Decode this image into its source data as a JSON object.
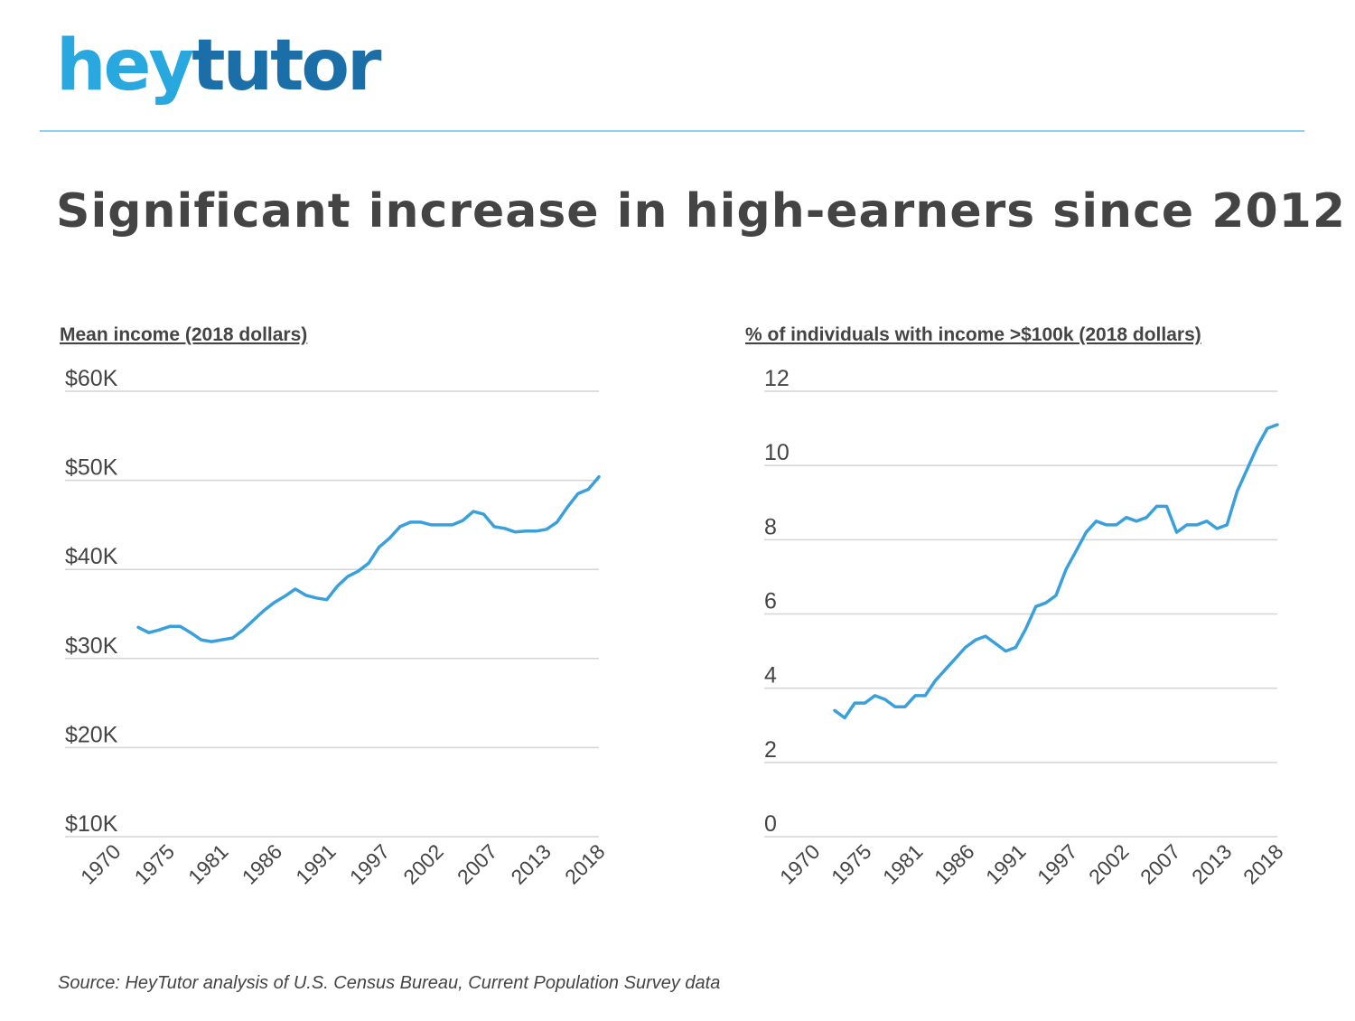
{
  "logo": {
    "hey": "hey",
    "tutor": "tutor"
  },
  "title": "Significant increase in high-earners since 2012",
  "source": "Source: HeyTutor analysis of U.S. Census Bureau, Current Population Survey data",
  "colors": {
    "line": "#3aa0dc",
    "grid": "#d4d4d4",
    "text": "#444444",
    "logo_light": "#29a8e0",
    "logo_dark": "#1b6fa8"
  },
  "chart_data": [
    {
      "type": "line",
      "title": "Mean income (2018 dollars)",
      "x_ticks": [
        "1970",
        "1975",
        "1981",
        "1986",
        "1991",
        "1997",
        "2002",
        "2007",
        "2013",
        "2018"
      ],
      "y_ticks": [
        "$10K",
        "$20K",
        "$30K",
        "$40K",
        "$50K",
        "$60K"
      ],
      "ylim": [
        10000,
        60000
      ],
      "xlim": [
        1967,
        2018
      ],
      "grid": true,
      "x": [
        1974,
        1975,
        1976,
        1977,
        1978,
        1979,
        1980,
        1981,
        1982,
        1983,
        1984,
        1985,
        1986,
        1987,
        1988,
        1989,
        1990,
        1991,
        1992,
        1993,
        1994,
        1995,
        1996,
        1997,
        1998,
        1999,
        2000,
        2001,
        2002,
        2003,
        2004,
        2005,
        2006,
        2007,
        2008,
        2009,
        2010,
        2011,
        2012,
        2013,
        2014,
        2015,
        2016,
        2017,
        2018
      ],
      "y": [
        33500,
        32900,
        33200,
        33600,
        33600,
        32900,
        32100,
        31900,
        32100,
        32300,
        33200,
        34300,
        35400,
        36300,
        37000,
        37800,
        37100,
        36800,
        36600,
        38100,
        39200,
        39800,
        40700,
        42500,
        43500,
        44800,
        45300,
        45300,
        45000,
        45000,
        45000,
        45500,
        46500,
        46200,
        44800,
        44600,
        44200,
        44300,
        44300,
        44500,
        45300,
        47000,
        48500,
        49000,
        50400
      ]
    },
    {
      "type": "line",
      "title": "% of individuals with income >$100k (2018 dollars)",
      "x_ticks": [
        "1970",
        "1975",
        "1981",
        "1986",
        "1991",
        "1997",
        "2002",
        "2007",
        "2013",
        "2018"
      ],
      "y_ticks": [
        "0",
        "2",
        "4",
        "6",
        "8",
        "10",
        "12"
      ],
      "ylim": [
        0,
        12
      ],
      "xlim": [
        1967,
        2018
      ],
      "grid": true,
      "x": [
        1974,
        1975,
        1976,
        1977,
        1978,
        1979,
        1980,
        1981,
        1982,
        1983,
        1984,
        1985,
        1986,
        1987,
        1988,
        1989,
        1990,
        1991,
        1992,
        1993,
        1994,
        1995,
        1996,
        1997,
        1998,
        1999,
        2000,
        2001,
        2002,
        2003,
        2004,
        2005,
        2006,
        2007,
        2008,
        2009,
        2010,
        2011,
        2012,
        2013,
        2014,
        2015,
        2016,
        2017,
        2018
      ],
      "y": [
        3.4,
        3.2,
        3.6,
        3.6,
        3.8,
        3.7,
        3.5,
        3.5,
        3.8,
        3.8,
        4.2,
        4.5,
        4.8,
        5.1,
        5.3,
        5.4,
        5.2,
        5.0,
        5.1,
        5.6,
        6.2,
        6.3,
        6.5,
        7.2,
        7.7,
        8.2,
        8.5,
        8.4,
        8.4,
        8.6,
        8.5,
        8.6,
        8.9,
        8.9,
        8.2,
        8.4,
        8.4,
        8.5,
        8.3,
        8.4,
        9.3,
        9.9,
        10.5,
        11.0,
        11.1
      ]
    }
  ]
}
